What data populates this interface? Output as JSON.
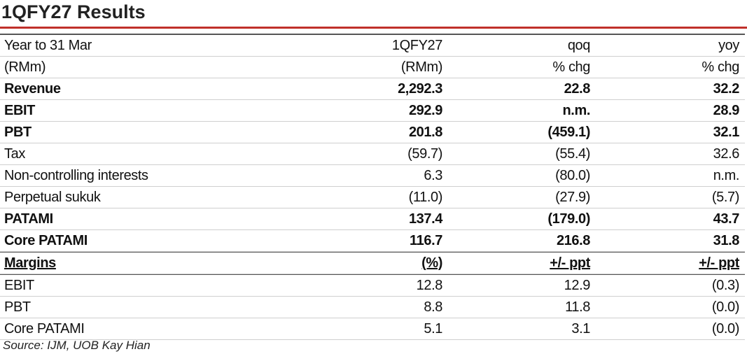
{
  "title": "1QFY27 Results",
  "table": {
    "header": [
      [
        "Year to 31 Mar",
        "1QFY27",
        "qoq",
        "yoy"
      ],
      [
        "(RMm)",
        "(RMm)",
        "% chg",
        "% chg"
      ]
    ],
    "rows": [
      {
        "cells": [
          "Revenue",
          "2,292.3",
          "22.8",
          "32.2"
        ],
        "style": "bold"
      },
      {
        "cells": [
          "EBIT",
          "292.9",
          "n.m.",
          "28.9"
        ],
        "style": "bold"
      },
      {
        "cells": [
          "PBT",
          "201.8",
          "(459.1)",
          "32.1"
        ],
        "style": "bold"
      },
      {
        "cells": [
          "Tax",
          "(59.7)",
          "(55.4)",
          "32.6"
        ],
        "style": "normal"
      },
      {
        "cells": [
          "Non-controlling interests",
          "6.3",
          "(80.0)",
          "n.m."
        ],
        "style": "normal"
      },
      {
        "cells": [
          "Perpetual sukuk",
          "(11.0)",
          "(27.9)",
          "(5.7)"
        ],
        "style": "normal"
      },
      {
        "cells": [
          "PATAMI",
          "137.4",
          "(179.0)",
          "43.7"
        ],
        "style": "bold"
      },
      {
        "cells": [
          "Core PATAMI",
          "116.7",
          "216.8",
          "31.8"
        ],
        "style": "bold"
      },
      {
        "cells": [
          "Margins",
          "(%)",
          "+/- ppt",
          "+/- ppt"
        ],
        "style": "bold-underline"
      },
      {
        "cells": [
          "EBIT",
          "12.8",
          "12.9",
          "(0.3)"
        ],
        "style": "normal"
      },
      {
        "cells": [
          "PBT",
          "8.8",
          "11.8",
          "(0.0)"
        ],
        "style": "normal"
      },
      {
        "cells": [
          "Core PATAMI",
          "5.1",
          "3.1",
          "(0.0)"
        ],
        "style": "normal"
      }
    ]
  },
  "source": "Source: IJM, UOB Kay Hian"
}
